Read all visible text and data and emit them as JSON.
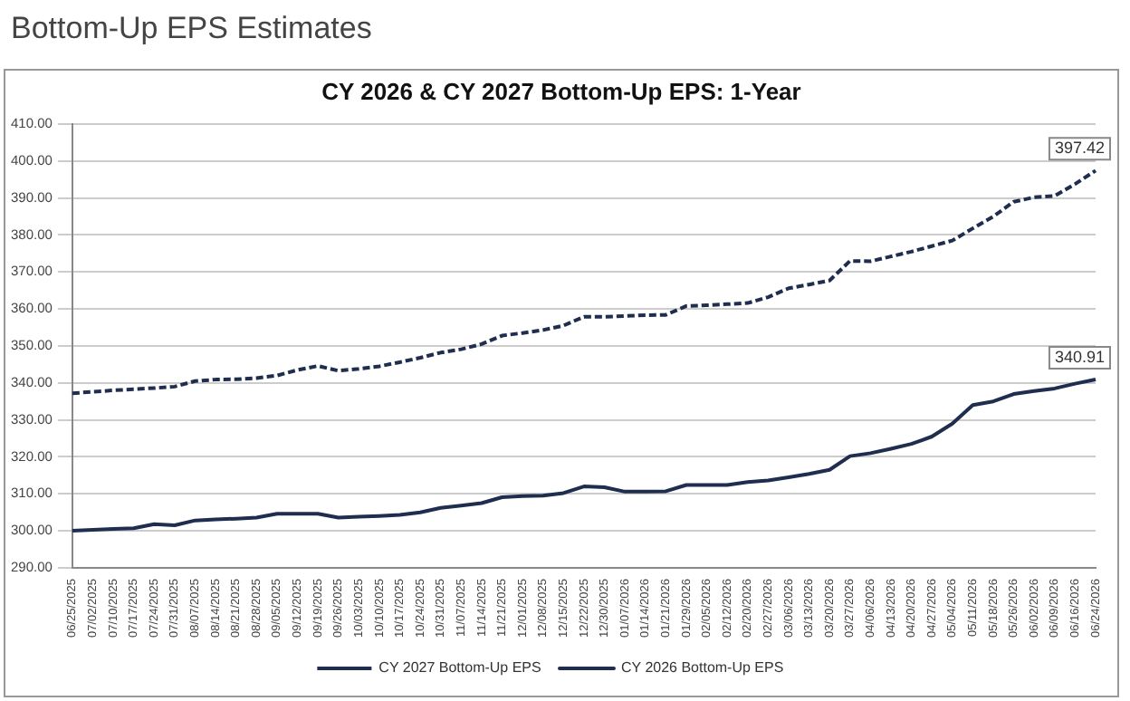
{
  "chart_data": {
    "type": "line",
    "title": "Bottom-Up EPS Estimates",
    "subtitle": "CY 2026 & CY 2027 Bottom-Up EPS: 1-Year",
    "categories": [
      "06/25/2025",
      "07/02/2025",
      "07/10/2025",
      "07/17/2025",
      "07/24/2025",
      "07/31/2025",
      "08/07/2025",
      "08/14/2025",
      "08/21/2025",
      "08/28/2025",
      "09/05/2025",
      "09/12/2025",
      "09/19/2025",
      "09/26/2025",
      "10/03/2025",
      "10/10/2025",
      "10/17/2025",
      "10/24/2025",
      "10/31/2025",
      "11/07/2025",
      "11/14/2025",
      "11/21/2025",
      "12/01/2025",
      "12/08/2025",
      "12/15/2025",
      "12/22/2025",
      "12/30/2025",
      "01/07/2026",
      "01/14/2026",
      "01/21/2026",
      "01/29/2026",
      "02/05/2026",
      "02/12/2026",
      "02/20/2026",
      "02/27/2026",
      "03/06/2026",
      "03/13/2026",
      "03/20/2026",
      "03/27/2026",
      "04/06/2026",
      "04/13/2026",
      "04/20/2026",
      "04/27/2026",
      "05/04/2026",
      "05/11/2026",
      "05/18/2026",
      "05/26/2026",
      "06/02/2026",
      "06/09/2026",
      "06/16/2026",
      "06/24/2026"
    ],
    "series": [
      {
        "name": "CY 2027 Bottom-Up EPS",
        "color": "#1f2d4f",
        "line_style": "dashed",
        "values": [
          337.2,
          337.6,
          338.0,
          338.3,
          338.6,
          339.0,
          340.5,
          340.9,
          341.0,
          341.3,
          342.0,
          343.5,
          344.6,
          343.3,
          343.8,
          344.5,
          345.6,
          346.8,
          348.2,
          349.1,
          350.5,
          352.8,
          353.5,
          354.3,
          355.5,
          357.9,
          357.9,
          358.1,
          358.3,
          358.4,
          360.8,
          361.0,
          361.3,
          361.6,
          363.2,
          365.6,
          366.6,
          367.7,
          373.0,
          372.9,
          374.2,
          375.5,
          377.0,
          378.5,
          381.8,
          385.0,
          389.0,
          390.2,
          390.6,
          393.8,
          397.42
        ],
        "value_labels": [
          null,
          null,
          null,
          null,
          null,
          null,
          null,
          null,
          null,
          null,
          null,
          null,
          null,
          null,
          null,
          null,
          null,
          null,
          null,
          null,
          null,
          null,
          null,
          null,
          null,
          null,
          null,
          null,
          null,
          null,
          null,
          null,
          null,
          null,
          null,
          null,
          null,
          null,
          null,
          null,
          null,
          null,
          null,
          null,
          null,
          null,
          null,
          null,
          null,
          null,
          "397.42"
        ]
      },
      {
        "name": "CY 2026 Bottom-Up EPS",
        "color": "#1f2d4f",
        "line_style": "solid",
        "values": [
          300.0,
          300.3,
          300.5,
          300.7,
          301.8,
          301.5,
          302.8,
          303.1,
          303.3,
          303.6,
          304.6,
          304.6,
          304.6,
          303.6,
          303.8,
          304.0,
          304.3,
          305.0,
          306.2,
          306.8,
          307.5,
          309.1,
          309.4,
          309.5,
          310.2,
          312.0,
          311.8,
          310.6,
          310.6,
          310.7,
          312.4,
          312.4,
          312.4,
          313.2,
          313.6,
          314.5,
          315.4,
          316.5,
          320.2,
          321.0,
          322.2,
          323.5,
          325.5,
          329.0,
          334.0,
          335.0,
          337.0,
          337.8,
          338.5,
          339.8,
          340.91
        ],
        "value_labels": [
          null,
          null,
          null,
          null,
          null,
          null,
          null,
          null,
          null,
          null,
          null,
          null,
          null,
          null,
          null,
          null,
          null,
          null,
          null,
          null,
          null,
          null,
          null,
          null,
          null,
          null,
          null,
          null,
          null,
          null,
          null,
          null,
          null,
          null,
          null,
          null,
          null,
          null,
          null,
          null,
          null,
          null,
          null,
          null,
          null,
          null,
          null,
          null,
          null,
          null,
          "340.91"
        ]
      }
    ],
    "ylim": [
      290,
      410
    ],
    "yticks": [
      {
        "value": 290,
        "label": "290.00"
      },
      {
        "value": 300,
        "label": "300.00"
      },
      {
        "value": 310,
        "label": "310.00"
      },
      {
        "value": 320,
        "label": "320.00"
      },
      {
        "value": 330,
        "label": "330.00"
      },
      {
        "value": 340,
        "label": "340.00"
      },
      {
        "value": 350,
        "label": "350.00"
      },
      {
        "value": 360,
        "label": "360.00"
      },
      {
        "value": 370,
        "label": "370.00"
      },
      {
        "value": 380,
        "label": "380.00"
      },
      {
        "value": 390,
        "label": "390.00"
      },
      {
        "value": 400,
        "label": "400.00"
      },
      {
        "value": 410,
        "label": "410.00"
      }
    ],
    "grid": "y",
    "legend": "bottom",
    "marker": "none"
  }
}
